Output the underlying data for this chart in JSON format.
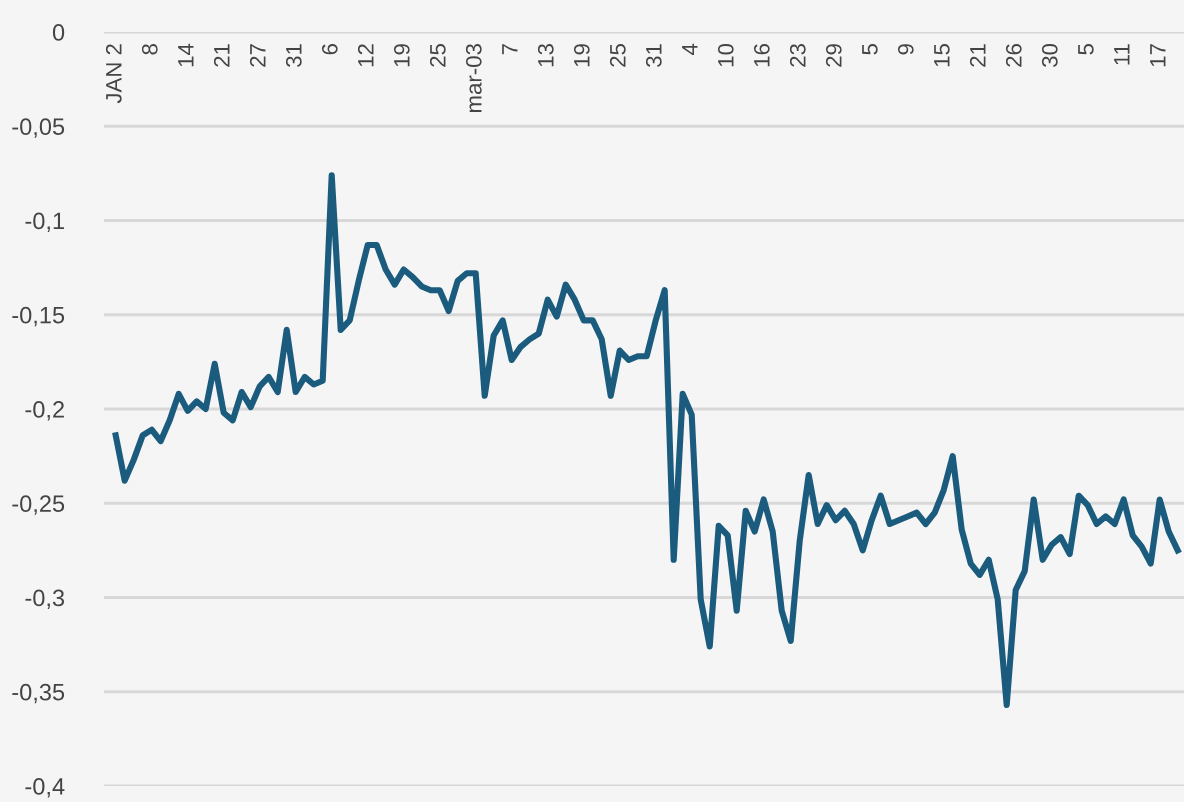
{
  "chart_data": {
    "type": "line",
    "categories": [
      "JAN 2",
      null,
      null,
      null,
      "8",
      null,
      null,
      null,
      "14",
      null,
      null,
      null,
      "21",
      null,
      null,
      null,
      "27",
      null,
      null,
      null,
      "31",
      null,
      null,
      null,
      "6",
      null,
      null,
      null,
      "12",
      null,
      null,
      null,
      "19",
      null,
      null,
      null,
      "25",
      null,
      null,
      null,
      "mar-03",
      null,
      null,
      null,
      "7",
      null,
      null,
      null,
      "13",
      null,
      null,
      null,
      "19",
      null,
      null,
      null,
      "25",
      null,
      null,
      null,
      "31",
      null,
      null,
      null,
      "4",
      null,
      null,
      null,
      "10",
      null,
      null,
      null,
      "16",
      null,
      null,
      null,
      "23",
      null,
      null,
      null,
      "29",
      null,
      null,
      null,
      "5",
      null,
      null,
      null,
      "9",
      null,
      null,
      null,
      "15",
      null,
      null,
      null,
      "21",
      null,
      null,
      null,
      "26",
      null,
      null,
      null,
      "30",
      null,
      null,
      null,
      "5",
      null,
      null,
      null,
      "11",
      null,
      null,
      null,
      "17",
      null,
      null
    ],
    "series": [
      {
        "color": "#1b5c7e",
        "values": [
          -0.214,
          -0.238,
          -0.227,
          -0.214,
          -0.211,
          -0.217,
          -0.206,
          -0.192,
          -0.201,
          -0.196,
          -0.2,
          -0.176,
          -0.202,
          -0.206,
          -0.191,
          -0.199,
          -0.188,
          -0.183,
          -0.191,
          -0.158,
          -0.191,
          -0.183,
          -0.187,
          -0.185,
          -0.076,
          -0.158,
          -0.153,
          -0.132,
          -0.113,
          -0.113,
          -0.126,
          -0.134,
          -0.126,
          -0.13,
          -0.135,
          -0.137,
          -0.137,
          -0.148,
          -0.132,
          -0.128,
          -0.128,
          -0.193,
          -0.161,
          -0.153,
          -0.174,
          -0.167,
          -0.163,
          -0.16,
          -0.142,
          -0.151,
          -0.134,
          -0.142,
          -0.153,
          -0.153,
          -0.163,
          -0.193,
          -0.169,
          -0.174,
          -0.172,
          -0.172,
          -0.153,
          -0.137,
          -0.28,
          -0.192,
          -0.203,
          -0.301,
          -0.326,
          -0.262,
          -0.267,
          -0.307,
          -0.254,
          -0.265,
          -0.248,
          -0.265,
          -0.307,
          -0.323,
          -0.27,
          -0.235,
          -0.261,
          -0.251,
          -0.259,
          -0.254,
          -0.261,
          -0.275,
          -0.259,
          -0.246,
          -0.261,
          -0.259,
          -0.257,
          -0.255,
          -0.261,
          -0.255,
          -0.243,
          -0.225,
          -0.264,
          -0.282,
          -0.288,
          -0.28,
          -0.301,
          -0.357,
          -0.296,
          -0.286,
          -0.248,
          -0.28,
          -0.272,
          -0.268,
          -0.277,
          -0.246,
          -0.251,
          -0.261,
          -0.257,
          -0.261,
          -0.248,
          -0.267,
          -0.273,
          -0.282,
          -0.248,
          -0.265,
          -0.275
        ]
      }
    ],
    "ylim": [
      -0.4,
      0
    ],
    "yticks": [
      0,
      {
        "value": -0.05,
        "label": "-0,05"
      },
      {
        "value": -0.1,
        "label": "-0,1"
      },
      {
        "value": -0.15,
        "label": "-0,15"
      },
      {
        "value": -0.2,
        "label": "-0,2"
      },
      {
        "value": -0.25,
        "label": "-0,25"
      },
      {
        "value": -0.3,
        "label": "-0,3"
      },
      {
        "value": -0.35,
        "label": "-0,35"
      },
      {
        "value": -0.4,
        "label": "-0,4"
      }
    ],
    "grid": "y",
    "marker": "none",
    "line_style": "solid"
  }
}
